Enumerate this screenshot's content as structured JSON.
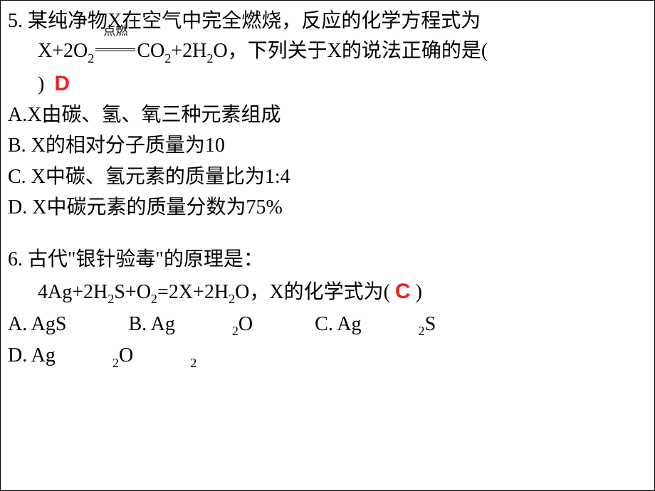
{
  "colors": {
    "text": "#000000",
    "answer": "#e9241d",
    "background": "#ffffff"
  },
  "fontsize": {
    "main": 28,
    "answer": 30,
    "arrow_label": 17
  },
  "q5": {
    "line1": "5. 某纯净物X在空气中完全燃烧，反应的化学方程式为",
    "eq_left": "X+2O",
    "eq_left_sub": "2",
    "arrow_label": "点燃",
    "eq_right_1": "CO",
    "eq_right_1_sub": "2",
    "eq_right_2": "+2H",
    "eq_right_2_sub": "2",
    "eq_right_3": "O，下列关于X的说法正确的是(",
    "line3_close": ")",
    "answer": "D",
    "options": {
      "A": "A.X由碳、氢、氧三种元素组成",
      "B": "B. X的相对分子质量为10",
      "C": "C. X中碳、氢元素的质量比为1:4",
      "D": "D. X中碳元素的质量分数为75%"
    }
  },
  "q6": {
    "line1": "6. 古代\"银针验毒\"的原理是：",
    "eq_pre": "4Ag+2H",
    "eq_sub1": "2",
    "eq_mid1": "S+O",
    "eq_sub2": "2",
    "eq_mid2": "=2X+2H",
    "eq_sub3": "2",
    "eq_mid3": "O，X的化学式为(  ",
    "answer": "C",
    "eq_close": " )",
    "options": {
      "A_pre": "A. AgS",
      "B_pre": "B. Ag",
      "B_sub": "2",
      "B_post": "O",
      "C_pre": "C. Ag",
      "C_sub": "2",
      "C_post": "S",
      "D_pre": "D. Ag",
      "D_sub": "2",
      "D_mid": "O",
      "D_sub2": "2"
    }
  }
}
